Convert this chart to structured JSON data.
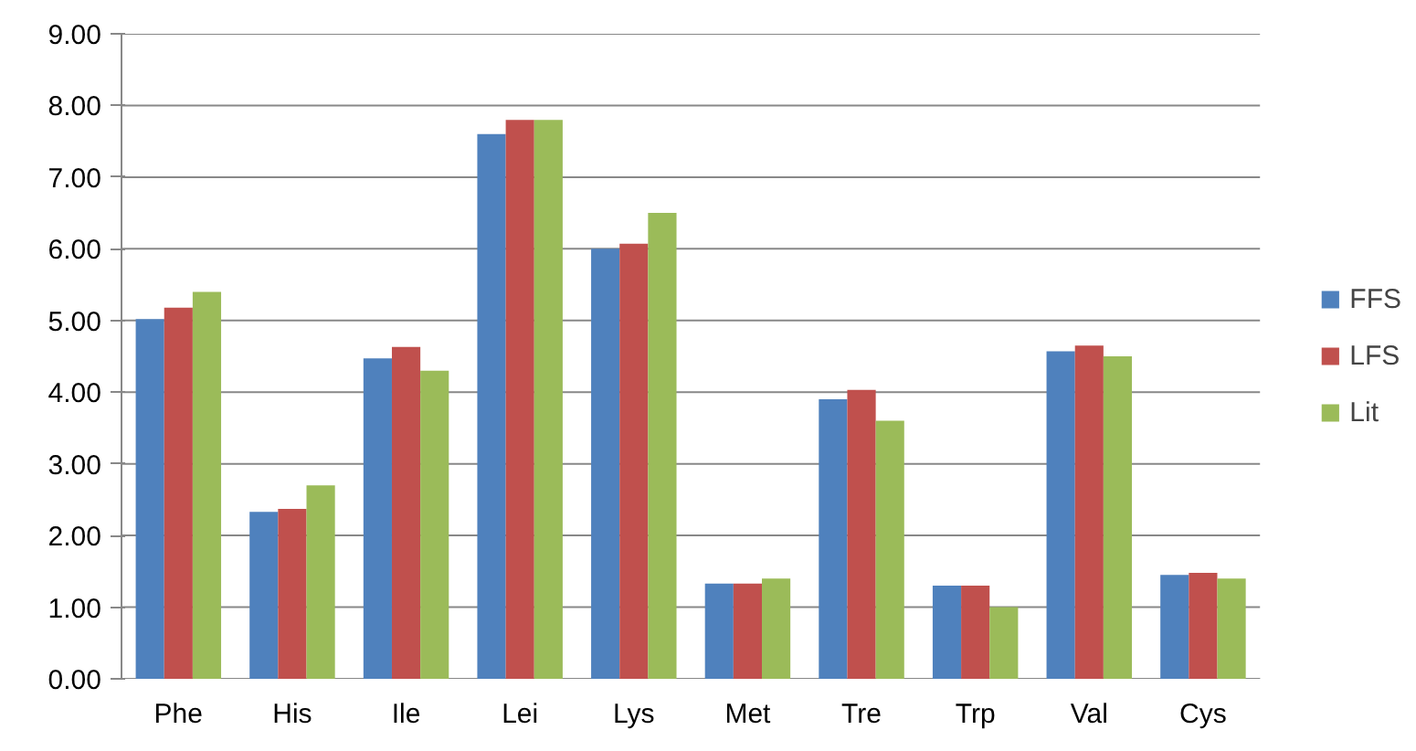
{
  "chart_data": {
    "type": "bar",
    "categories": [
      "Phe",
      "His",
      "Ile",
      "Lei",
      "Lys",
      "Met",
      "Tre",
      "Trp",
      "Val",
      "Cys"
    ],
    "series": [
      {
        "name": "FFS",
        "color": "#4f81bd",
        "values": [
          5.02,
          2.33,
          4.47,
          7.6,
          6.0,
          1.33,
          3.9,
          1.3,
          4.57,
          1.45
        ]
      },
      {
        "name": "LFS",
        "color": "#c0504d",
        "values": [
          5.18,
          2.37,
          4.63,
          7.8,
          6.07,
          1.33,
          4.03,
          1.3,
          4.65,
          1.48
        ]
      },
      {
        "name": "Lit",
        "color": "#9bbb59",
        "values": [
          5.4,
          2.7,
          4.3,
          7.8,
          6.5,
          1.4,
          3.6,
          1.0,
          4.5,
          1.4
        ]
      }
    ],
    "ylim": [
      0,
      9
    ],
    "yticks": [
      {
        "value": 0,
        "label": "0.00"
      },
      {
        "value": 1,
        "label": "1.00"
      },
      {
        "value": 2,
        "label": "2.00"
      },
      {
        "value": 3,
        "label": "3.00"
      },
      {
        "value": 4,
        "label": "4.00"
      },
      {
        "value": 5,
        "label": "5.00"
      },
      {
        "value": 6,
        "label": "6.00"
      },
      {
        "value": 7,
        "label": "7.00"
      },
      {
        "value": 8,
        "label": "8.00"
      },
      {
        "value": 9,
        "label": "9.00"
      }
    ],
    "grid": "y",
    "legend": "right"
  }
}
